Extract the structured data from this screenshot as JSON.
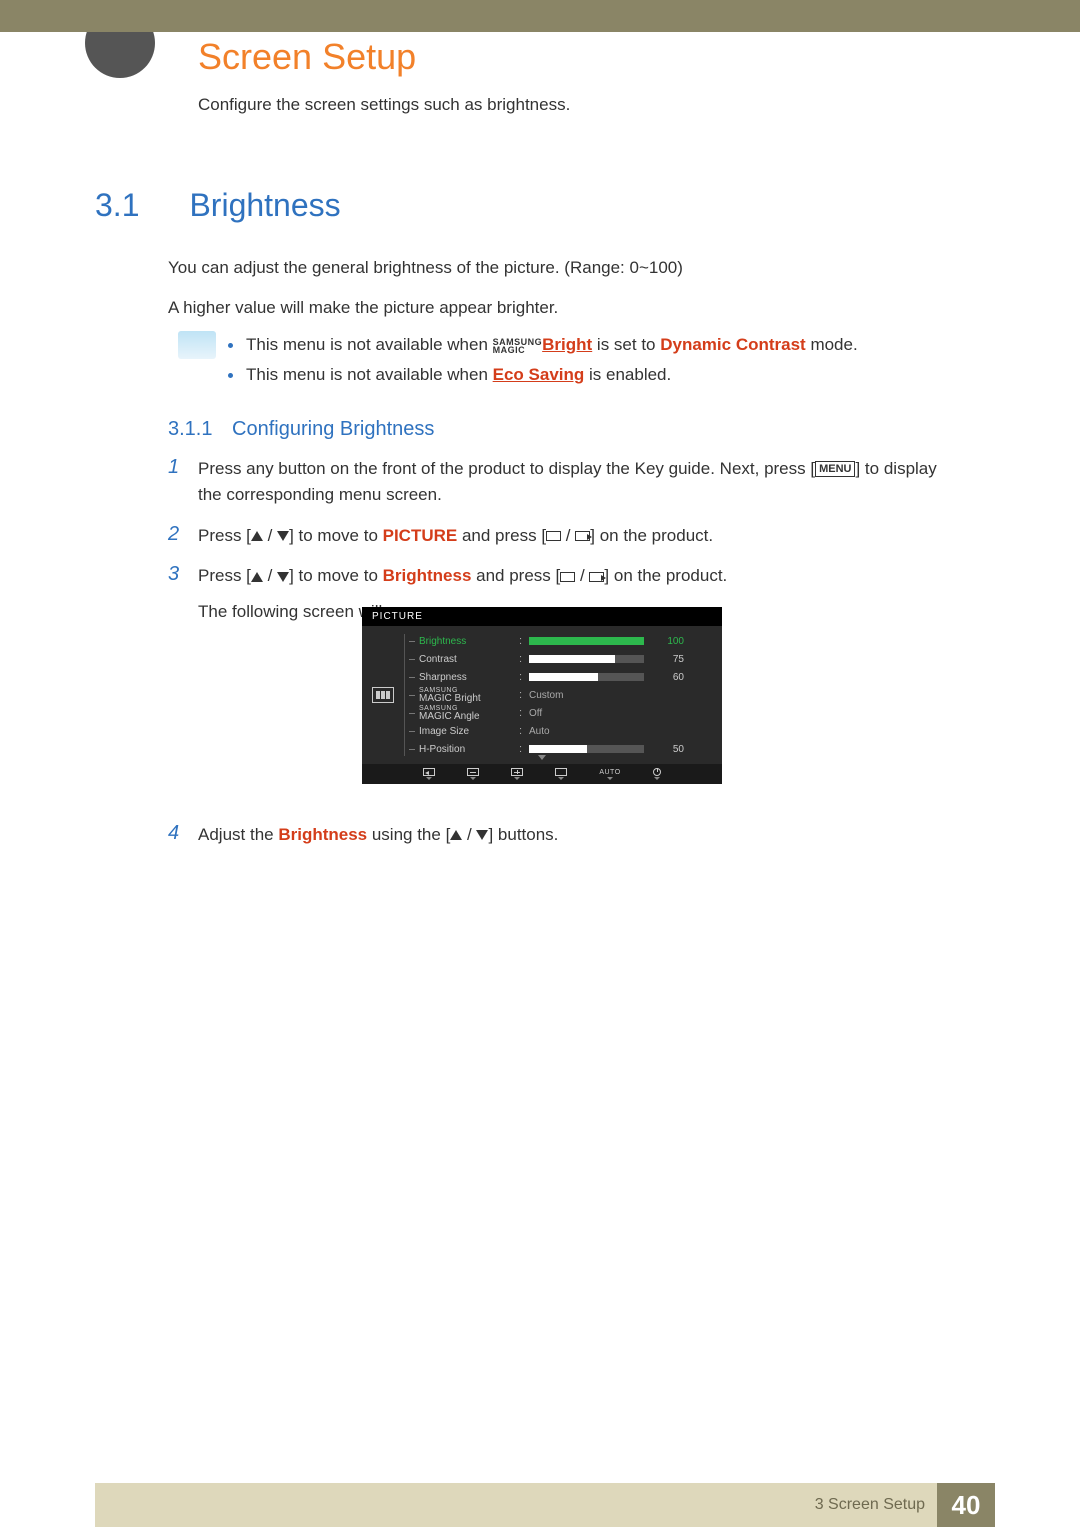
{
  "page": {
    "chapter_title": "Screen Setup",
    "intro": "Configure the screen settings such as brightness.",
    "section": {
      "num": "3.1",
      "title": "Brightness"
    },
    "para1": "You can adjust the general brightness of the picture. (Range: 0~100)",
    "para2": "A higher value will make the picture appear brighter.",
    "info": {
      "line1a": "This menu is not available when ",
      "magic_top": "SAMSUNG",
      "magic_bottom": "MAGIC",
      "bright_word": "Bright",
      "line1b": " is set to ",
      "dynamic": "Dynamic Contrast",
      "line1c": " mode.",
      "line2a": "This menu is not available when ",
      "eco": "Eco Saving",
      "line2b": " is enabled."
    },
    "subsection": {
      "num": "3.1.1",
      "title": "Configuring Brightness"
    },
    "steps": {
      "s1": "Press any button on the front of the product to display the Key guide. Next, press [",
      "s1_menu": "MENU",
      "s1b": "] to display the corresponding menu screen.",
      "s2a": "Press [",
      "s2b": "] to move to ",
      "s2_pic": "PICTURE",
      "s2c": " and press [",
      "s2d": "] on the product.",
      "s3a": "Press [",
      "s3b": "] to move to ",
      "s3_bri": "Brightness",
      "s3c": " and press [",
      "s3d": "] on the product.",
      "s3e": "The following screen will appear.",
      "s4a": "Adjust the ",
      "s4_bri": "Brightness",
      "s4b": " using the [",
      "s4c": "] buttons."
    },
    "osd": {
      "header": "PICTURE",
      "rows": [
        {
          "label": "Brightness",
          "type": "slider",
          "value": 100,
          "max": 100,
          "selected": true
        },
        {
          "label": "Contrast",
          "type": "slider",
          "value": 75,
          "max": 100,
          "selected": false
        },
        {
          "label": "Sharpness",
          "type": "slider",
          "value": 60,
          "max": 100,
          "selected": false
        },
        {
          "label": "SAMSUNG MAGIC Bright",
          "type": "text",
          "text": "Custom",
          "magic": true
        },
        {
          "label": "SAMSUNG MAGIC Angle",
          "type": "text",
          "text": "Off",
          "magic": true
        },
        {
          "label": "Image Size",
          "type": "text",
          "text": "Auto"
        },
        {
          "label": "H-Position",
          "type": "slider",
          "value": 50,
          "max": 100,
          "selected": false
        }
      ],
      "footer_auto": "AUTO",
      "colors": {
        "bg": "#2a2a2a",
        "header_bg": "#000000",
        "selected": "#2db84d",
        "slider_track": "#555555",
        "slider_fill": "#ffffff",
        "text": "#cccccc"
      }
    },
    "footer": {
      "text": "3 Screen Setup",
      "page": "40",
      "bar_color": "#ded8bb",
      "page_bg": "#8a8566"
    }
  }
}
